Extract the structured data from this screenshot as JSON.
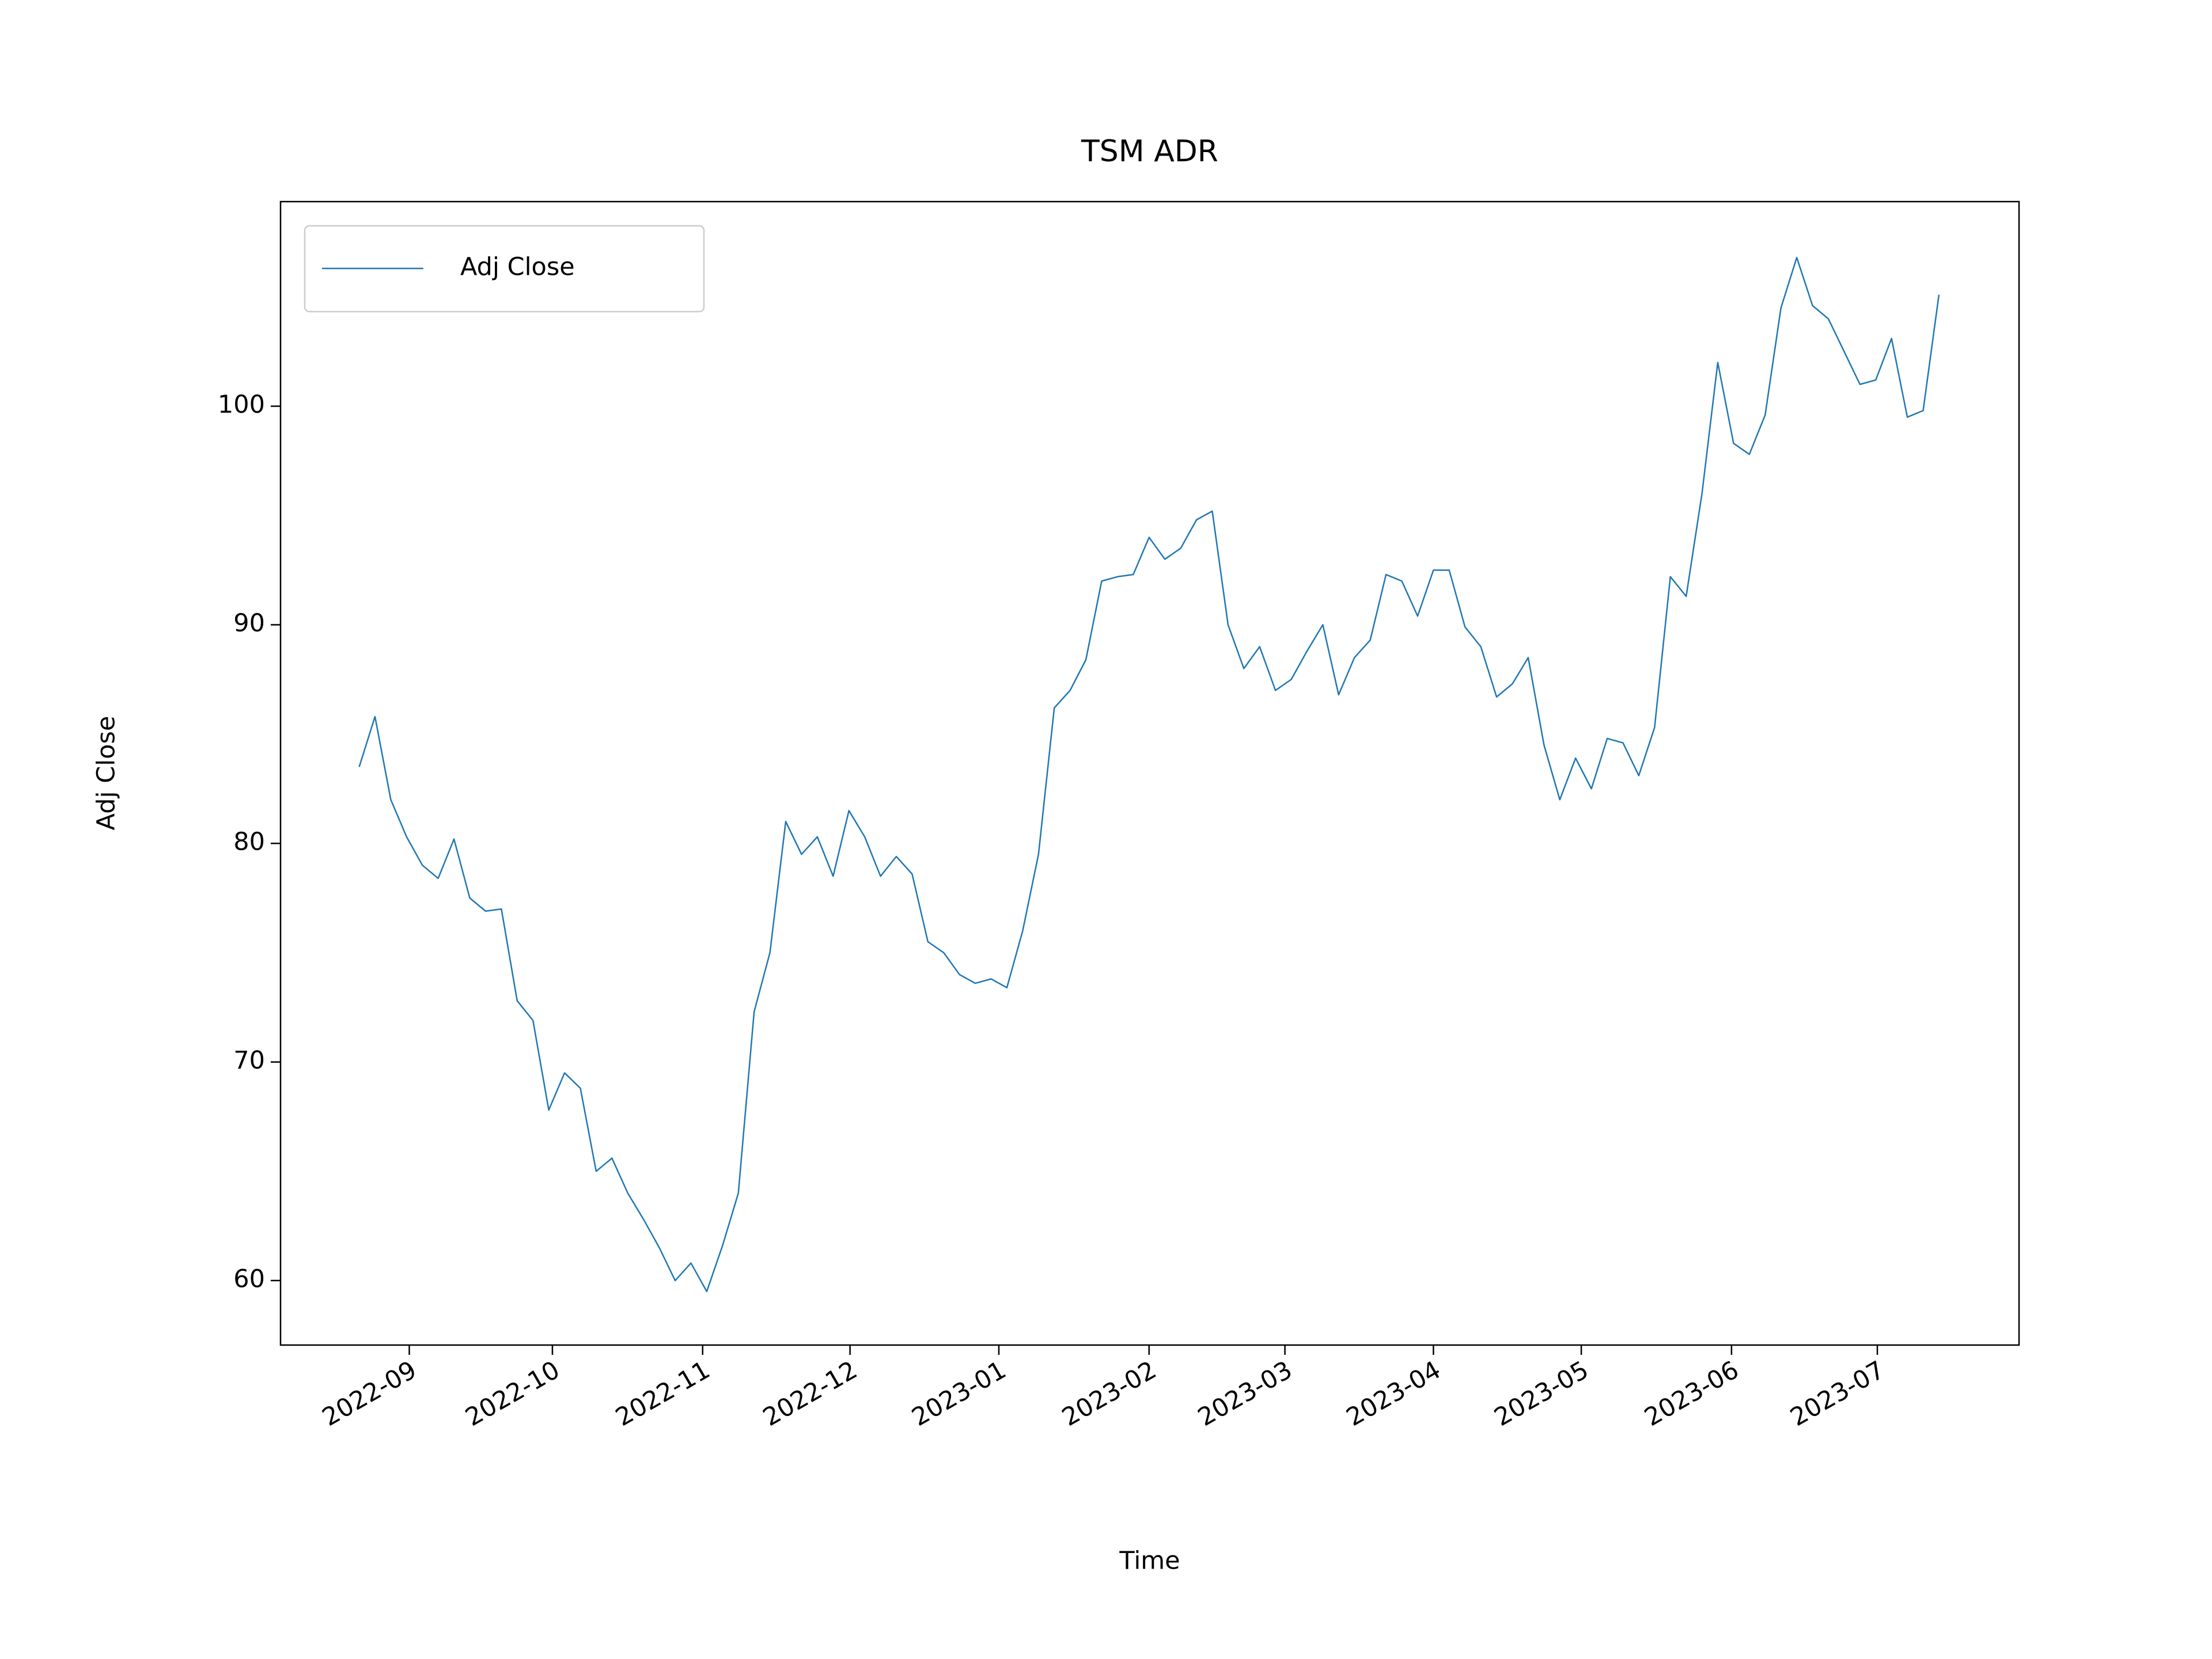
{
  "chart_data": {
    "type": "line",
    "title": "TSM ADR",
    "x_label": "Time",
    "y_label": "Adj Close",
    "legend": "upper left",
    "series": [
      {
        "name": "Adj Close",
        "color": "#1f77b4",
        "values": [
          83.5,
          85.8,
          82,
          80.3,
          79.0,
          78.4,
          80.2,
          77.5,
          76.9,
          77.0,
          72.8,
          71.9,
          67.8,
          69.5,
          68.8,
          65,
          65.6,
          64.0,
          62.8,
          61.5,
          60,
          60.8,
          59.5,
          61.6,
          64.0,
          72.3,
          75,
          81.0,
          79.5,
          80.3,
          78.5,
          81.5,
          80.3,
          78.5,
          79.4,
          78.6,
          75.5,
          75.0,
          74.0,
          73.6,
          73.8,
          73.4,
          76,
          79.5,
          86.2,
          87,
          88.4,
          92,
          92.2,
          92.3,
          94,
          93,
          93.5,
          94.8,
          95.2,
          90,
          88,
          89,
          87,
          87.5,
          88.8,
          90,
          86.8,
          88.5,
          89.3,
          92.3,
          92,
          90.4,
          92.5,
          92.5,
          89.9,
          89,
          86.7,
          87.3,
          88.5,
          84.5,
          82.0,
          83.9,
          82.5,
          84.8,
          84.6,
          83.1,
          85.3,
          92.2,
          91.3,
          96,
          102,
          98.3,
          97.8,
          99.6,
          104.5,
          106.8,
          104.6,
          104,
          102.5,
          101,
          101.2,
          103.1,
          99.5,
          99.8,
          105.1
        ]
      }
    ],
    "xlim": [
      -4.98,
      105.07
    ],
    "xticks": [
      {
        "value": 3.17,
        "label": "2022-09"
      },
      {
        "value": 12.23,
        "label": "2022-10"
      },
      {
        "value": 21.74,
        "label": "2022-11"
      },
      {
        "value": 31.07,
        "label": "2022-12"
      },
      {
        "value": 40.49,
        "label": "2023-01"
      },
      {
        "value": 50.0,
        "label": "2023-02"
      },
      {
        "value": 58.6,
        "label": "2023-03"
      },
      {
        "value": 68.0,
        "label": "2023-04"
      },
      {
        "value": 77.36,
        "label": "2023-05"
      },
      {
        "value": 86.87,
        "label": "2023-06"
      },
      {
        "value": 96.1,
        "label": "2023-07"
      }
    ],
    "ylim": [
      57.05,
      109.36
    ],
    "yticks": [
      60,
      70,
      80,
      90,
      100
    ],
    "grid": false
  }
}
